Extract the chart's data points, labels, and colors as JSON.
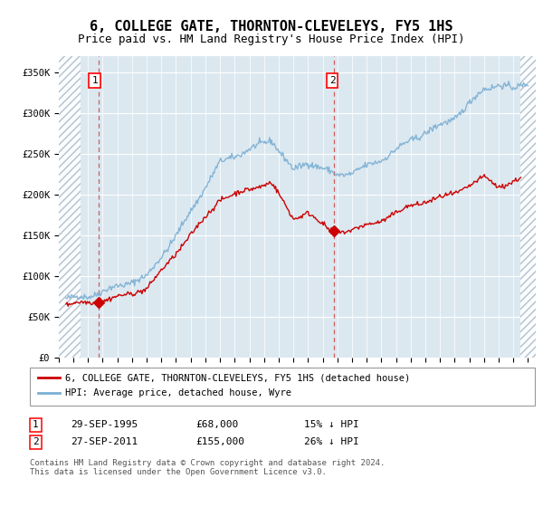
{
  "title": "6, COLLEGE GATE, THORNTON-CLEVELEYS, FY5 1HS",
  "subtitle": "Price paid vs. HM Land Registry's House Price Index (HPI)",
  "ylim": [
    0,
    370000
  ],
  "xlim_start": 1993.0,
  "xlim_end": 2025.5,
  "sale1_date": 1995.75,
  "sale1_price": 68000,
  "sale2_date": 2011.75,
  "sale2_price": 155000,
  "sale_color": "#cc0000",
  "hpi_color": "#7aafd4",
  "background_color": "#dce8f0",
  "grid_color": "#ffffff",
  "hatch_left_end": 1994.5,
  "hatch_right_start": 2024.5,
  "legend_label_sale": "6, COLLEGE GATE, THORNTON-CLEVELEYS, FY5 1HS (detached house)",
  "legend_label_hpi": "HPI: Average price, detached house, Wyre",
  "annotation1_date": "29-SEP-1995",
  "annotation1_price": "£68,000",
  "annotation1_hpi": "15% ↓ HPI",
  "annotation2_date": "27-SEP-2011",
  "annotation2_price": "£155,000",
  "annotation2_hpi": "26% ↓ HPI",
  "footnote": "Contains HM Land Registry data © Crown copyright and database right 2024.\nThis data is licensed under the Open Government Licence v3.0.",
  "title_fontsize": 11,
  "subtitle_fontsize": 9,
  "tick_fontsize": 7.5,
  "legend_fontsize": 7.5,
  "annot_fontsize": 8,
  "footnote_fontsize": 6.5
}
